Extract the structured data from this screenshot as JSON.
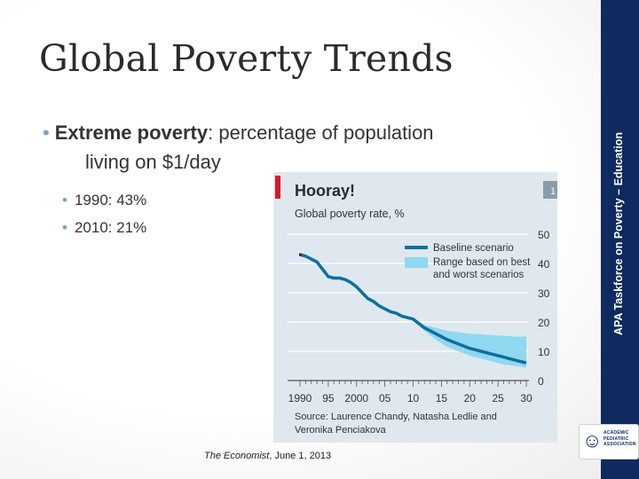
{
  "slide": {
    "title": "Global Poverty Trends",
    "sidebar_text": "APA Taskforce on Poverty – Education",
    "logo_text": "ACADEMIC PEDIATRIC ASSOCIATION",
    "bullet_main_bold": "Extreme poverty",
    "bullet_main_rest": ": percentage of population",
    "bullet_main_cont": "living on $1/day",
    "sub_bullets": [
      "1990: 43%",
      "2010: 21%"
    ],
    "caption_italic": "The Economist",
    "caption_rest": ", June 1, 2013"
  },
  "chart_data": {
    "type": "line",
    "title": "Hooray!",
    "subtitle": "Global poverty rate, %",
    "badge": "1",
    "legend": [
      "Baseline scenario",
      "Range based on best and worst scenarios"
    ],
    "legend_line1": "Range based on best",
    "legend_line2": "and worst scenarios",
    "xlabel": "",
    "ylabel": "",
    "x_ticks": [
      "1990",
      "95",
      "2000",
      "05",
      "10",
      "15",
      "20",
      "25",
      "30"
    ],
    "y_ticks": [
      "50",
      "40",
      "30",
      "20",
      "10",
      "0"
    ],
    "ylim": [
      0,
      50
    ],
    "xlim": [
      1990,
      2030
    ],
    "baseline": {
      "name": "Baseline scenario",
      "x": [
        1990,
        1991,
        1992,
        1993,
        1994,
        1995,
        1996,
        1997,
        1998,
        1999,
        2000,
        2001,
        2002,
        2003,
        2004,
        2005,
        2006,
        2007,
        2008,
        2009,
        2010,
        2012,
        2014,
        2016,
        2018,
        2020,
        2022,
        2024,
        2026,
        2028,
        2030
      ],
      "y": [
        43,
        42.5,
        41.5,
        40.5,
        38,
        35.5,
        35,
        35,
        34.5,
        33.5,
        32,
        30,
        28,
        27,
        25.5,
        24.5,
        23.5,
        23,
        22,
        21.5,
        21,
        18,
        16,
        14,
        12.5,
        11,
        10,
        9,
        8,
        7,
        6
      ]
    },
    "range": {
      "name": "Range based on best and worst scenarios",
      "x": [
        2010,
        2012,
        2014,
        2016,
        2018,
        2020,
        2022,
        2024,
        2026,
        2028,
        2030
      ],
      "low": [
        21,
        17,
        14,
        11.5,
        10,
        8.5,
        7.5,
        6.5,
        5.5,
        5,
        4.5
      ],
      "high": [
        21,
        19,
        18,
        17,
        16.5,
        16,
        15.8,
        15.5,
        15.3,
        15,
        15
      ]
    },
    "source_line1": "Source: Laurence Chandy, Natasha Ledlie and",
    "source_line2": "Veronika Penciakova",
    "colors": {
      "baseline": "#0f6ea0",
      "range": "#8fd8ef",
      "panel": "#dfe8ef",
      "accent_red": "#d8182a",
      "badge": "#8a9bab"
    }
  }
}
